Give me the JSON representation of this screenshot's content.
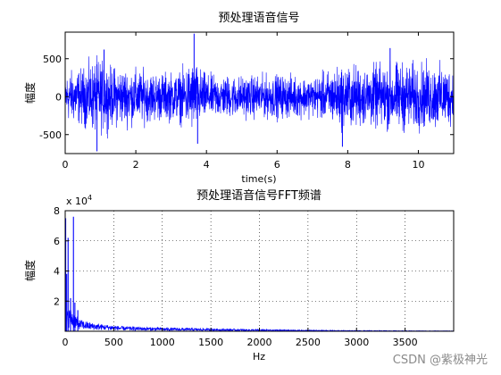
{
  "watermark": "CSDN @紫极神光",
  "chart_data": [
    {
      "type": "line",
      "title": "预处理语音信号",
      "xlabel": "time(s)",
      "ylabel": "幅度",
      "xlim": [
        0,
        11
      ],
      "ylim": [
        -750,
        850
      ],
      "xticks": [
        0,
        2,
        4,
        6,
        8,
        10
      ],
      "yticks": [
        -500,
        0,
        500
      ],
      "grid": false,
      "color": "#0000ff",
      "envelope": [
        {
          "t": 0.0,
          "amp": 420
        },
        {
          "t": 0.5,
          "amp": 500
        },
        {
          "t": 0.9,
          "amp": 650
        },
        {
          "t": 1.3,
          "amp": 520
        },
        {
          "t": 2.0,
          "amp": 480
        },
        {
          "t": 2.6,
          "amp": 420
        },
        {
          "t": 3.2,
          "amp": 420
        },
        {
          "t": 3.6,
          "amp": 620
        },
        {
          "t": 4.0,
          "amp": 380
        },
        {
          "t": 5.0,
          "amp": 360
        },
        {
          "t": 6.0,
          "amp": 380
        },
        {
          "t": 7.0,
          "amp": 340
        },
        {
          "t": 7.9,
          "amp": 560
        },
        {
          "t": 8.5,
          "amp": 520
        },
        {
          "t": 9.5,
          "amp": 600
        },
        {
          "t": 10.5,
          "amp": 560
        },
        {
          "t": 11.0,
          "amp": 500
        }
      ],
      "spikes": [
        {
          "t": 0.9,
          "y": -720
        },
        {
          "t": 1.1,
          "y": 620
        },
        {
          "t": 3.65,
          "y": 830
        },
        {
          "t": 3.75,
          "y": -620
        },
        {
          "t": 7.85,
          "y": -660
        },
        {
          "t": 9.2,
          "y": 640
        }
      ]
    },
    {
      "type": "line",
      "title": "预处理语音信号FFT频谱",
      "xlabel": "Hz",
      "ylabel": "幅度",
      "xlim": [
        0,
        4000
      ],
      "ylim": [
        0,
        80000
      ],
      "y_exponent": "x 10",
      "y_exponent_power": "4",
      "xticks": [
        0,
        500,
        1000,
        1500,
        2000,
        2500,
        3000,
        3500
      ],
      "yticks": [
        20000,
        40000,
        60000,
        80000
      ],
      "ytick_labels": [
        "2",
        "4",
        "6",
        "8"
      ],
      "grid": true,
      "color": "#0000ff",
      "envelope": [
        {
          "f": 0,
          "amp": 10000
        },
        {
          "f": 50,
          "amp": 12000
        },
        {
          "f": 150,
          "amp": 6000
        },
        {
          "f": 300,
          "amp": 4000
        },
        {
          "f": 600,
          "amp": 2500
        },
        {
          "f": 1000,
          "amp": 1800
        },
        {
          "f": 1500,
          "amp": 1400
        },
        {
          "f": 2000,
          "amp": 900
        },
        {
          "f": 2500,
          "amp": 600
        },
        {
          "f": 3000,
          "amp": 400
        },
        {
          "f": 3500,
          "amp": 300
        },
        {
          "f": 4000,
          "amp": 200
        }
      ],
      "peaks": [
        {
          "f": 5,
          "y": 75000
        },
        {
          "f": 15,
          "y": 38000
        },
        {
          "f": 30,
          "y": 62000
        },
        {
          "f": 55,
          "y": 22000
        },
        {
          "f": 85,
          "y": 76000
        },
        {
          "f": 100,
          "y": 19000
        },
        {
          "f": 130,
          "y": 14000
        }
      ]
    }
  ]
}
